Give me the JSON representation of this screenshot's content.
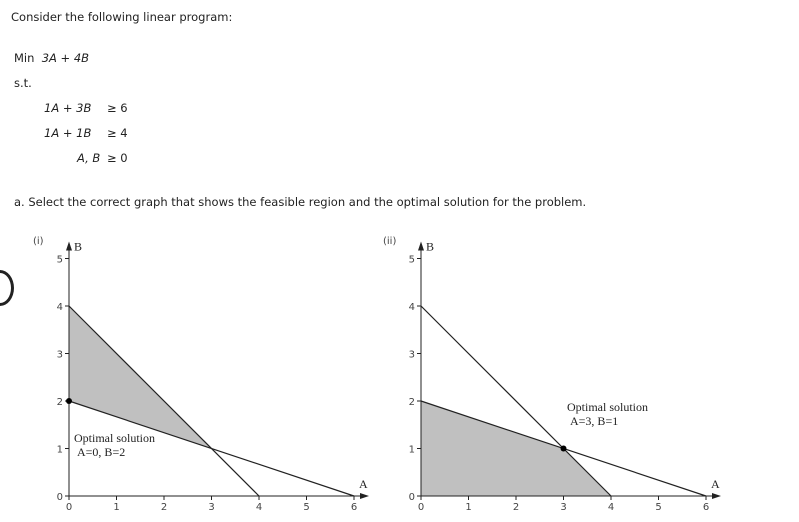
{
  "intro": "Consider the following linear program:",
  "objective": {
    "label": "Min",
    "expr": "3A + 4B"
  },
  "st": "s.t.",
  "constraints": [
    {
      "lhs": "1A + 3B",
      "rhs": "≥ 6"
    },
    {
      "lhs": "1A + 1B",
      "rhs": "≥ 4"
    },
    {
      "lhs": "A, B",
      "rhs": "≥ 0"
    }
  ],
  "question": "a. Select the correct graph that shows the feasible region and the optimal solution for the problem.",
  "chart_data": [
    {
      "type": "line",
      "label": "(i)",
      "xlabel": "A",
      "ylabel": "B",
      "xlim": [
        0,
        6
      ],
      "ylim": [
        0,
        5
      ],
      "xticks": [
        "0",
        "1",
        "2",
        "3",
        "4",
        "5",
        "6"
      ],
      "yticks": [
        "0",
        "1",
        "2",
        "3",
        "4",
        "5"
      ],
      "lines": [
        {
          "points": [
            [
              0,
              2
            ],
            [
              6,
              0
            ]
          ]
        },
        {
          "points": [
            [
              0,
              4
            ],
            [
              4,
              0
            ]
          ]
        }
      ],
      "shaded_region": [
        [
          0,
          2
        ],
        [
          0,
          4
        ],
        [
          3,
          1
        ]
      ],
      "optimal_point": [
        0,
        2
      ],
      "annotation": [
        "Optimal solution",
        "A=0, B=2"
      ]
    },
    {
      "type": "line",
      "label": "(ii)",
      "xlabel": "A",
      "ylabel": "B",
      "xlim": [
        0,
        6
      ],
      "ylim": [
        0,
        5
      ],
      "xticks": [
        "0",
        "1",
        "2",
        "3",
        "4",
        "5",
        "6"
      ],
      "yticks": [
        "0",
        "1",
        "2",
        "3",
        "4",
        "5"
      ],
      "lines": [
        {
          "points": [
            [
              0,
              2
            ],
            [
              6,
              0
            ]
          ]
        },
        {
          "points": [
            [
              0,
              4
            ],
            [
              4,
              0
            ]
          ]
        }
      ],
      "shaded_region": [
        [
          0,
          0
        ],
        [
          0,
          2
        ],
        [
          3,
          1
        ],
        [
          4,
          0
        ]
      ],
      "optimal_point": [
        3,
        1
      ],
      "annotation": [
        "Optimal solution",
        "A=3, B=1"
      ]
    }
  ],
  "colors": {
    "shade": "#c0c0c0",
    "line": "#222222"
  }
}
